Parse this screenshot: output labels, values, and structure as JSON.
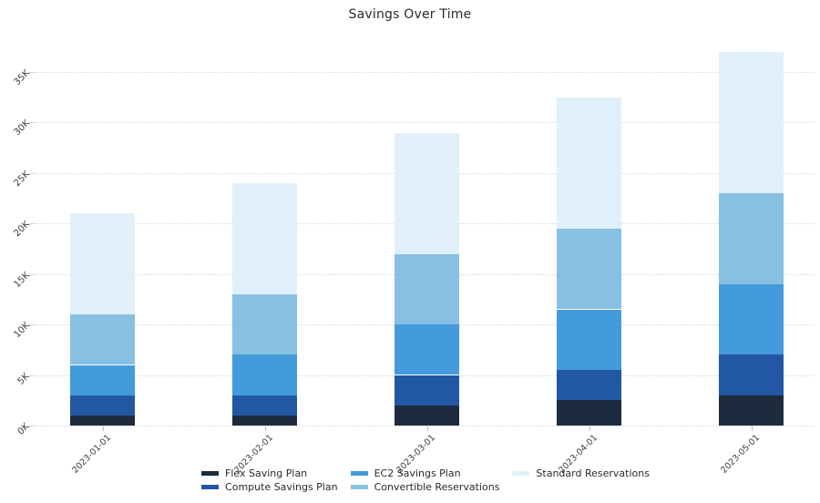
{
  "chart_data": {
    "type": "bar",
    "stacked": true,
    "title": "Savings Over Time",
    "categories": [
      "2023-01-01",
      "2023-02-01",
      "2023-03-01",
      "2023-04-01",
      "2023-05-01"
    ],
    "series": [
      {
        "name": "Flex Saving Plan",
        "color": "#1d2b3e",
        "values": [
          1000,
          1000,
          2000,
          2500,
          3000
        ]
      },
      {
        "name": "Compute Savings Plan",
        "color": "#2257a4",
        "values": [
          2000,
          2000,
          3000,
          3000,
          4000
        ]
      },
      {
        "name": "EC2 Savings Plan",
        "color": "#439bdb",
        "values": [
          3000,
          4000,
          5000,
          6000,
          7000
        ]
      },
      {
        "name": "Convertible Reservations",
        "color": "#87c0e2",
        "values": [
          5000,
          6000,
          7000,
          8000,
          9000
        ]
      },
      {
        "name": "Standard Reservations",
        "color": "#e0f0fa",
        "values": [
          10000,
          11000,
          12000,
          13000,
          14000
        ]
      }
    ],
    "stack_totals": [
      21000,
      24000,
      29000,
      32500,
      37000
    ],
    "xlabel": "",
    "ylabel": "",
    "ytick_labels": [
      "0K",
      "5K",
      "10K",
      "15K",
      "20K",
      "25K",
      "30K",
      "35K"
    ],
    "ytick_step": 5000,
    "ylim": [
      0,
      38500
    ],
    "grid": "horizontal-dotted",
    "legend_position": "bottom-center",
    "tick_angle": -45
  }
}
